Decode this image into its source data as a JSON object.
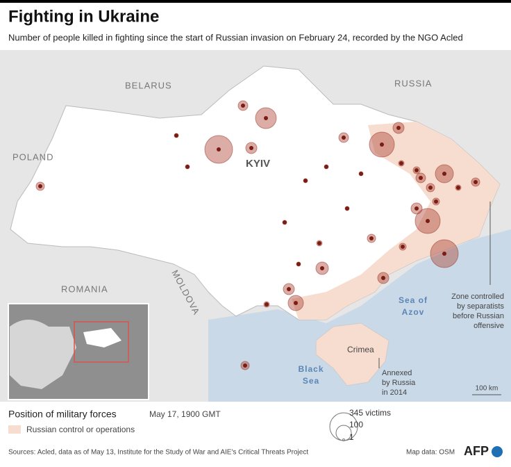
{
  "header": {
    "title": "Fighting in Ukraine",
    "subtitle": "Number of people killed in fighting since the start of Russian invasion on February 24, recorded by the NGO Acled"
  },
  "map": {
    "labels": {
      "belarus": "BELARUS",
      "russia": "RUSSIA",
      "poland": "POLAND",
      "romania": "ROMANIA",
      "moldova": "MOLDOVA",
      "kyiv": "KYIV",
      "sea_of_azov": [
        "Sea of",
        "Azov"
      ],
      "black_sea": [
        "Black",
        "Sea"
      ],
      "crimea": "Crimea"
    },
    "annotations": {
      "separatists": [
        "Zone controlled",
        "by separatists",
        "before Russian",
        "offensive"
      ],
      "annexed": [
        "Annexed",
        "by Russia",
        "in 2014"
      ]
    },
    "scale": "100 km"
  },
  "legend": {
    "title": "Position of military forces",
    "date": "May 17, 1900 GMT",
    "zone": "Russian control or operations",
    "sizes": [
      "345 victims",
      "100",
      "1"
    ]
  },
  "footer": {
    "sources": "Sources: Acled, data as of May 13, Institute for the Study of War and AIE's Critical Threats Project",
    "map_credit": "Map data: OSM",
    "logo": "AFP"
  }
}
